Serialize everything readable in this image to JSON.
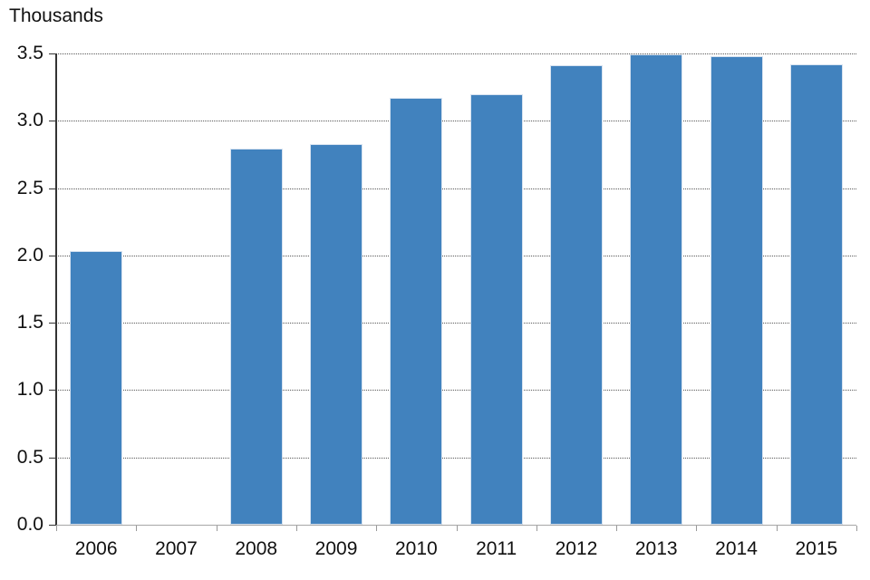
{
  "chart_data": {
    "type": "bar",
    "title": "",
    "ylabel": "Thousands",
    "ylabel_position": "top-left",
    "xlabel": "",
    "categories": [
      "2006",
      "2007",
      "2008",
      "2009",
      "2010",
      "2011",
      "2012",
      "2013",
      "2014",
      "2015"
    ],
    "values": [
      2.03,
      null,
      2.79,
      2.83,
      3.17,
      3.2,
      3.41,
      3.49,
      3.48,
      3.42
    ],
    "ylim": [
      0,
      3.5
    ],
    "ytick_step": 0.5,
    "ytick_labels": [
      "0.0",
      "0.5",
      "1.0",
      "1.5",
      "2.0",
      "2.5",
      "3.0",
      "3.5"
    ],
    "grid": "horizontal-dotted",
    "legend": "none",
    "colors": {
      "bar_fill": "#4182BE",
      "bar_border": "#D6E2F0",
      "gridline": "#595959",
      "y_axis": "#333333",
      "x_axis": "#A6A6A6",
      "text": "#111111",
      "background": "#FFFFFF"
    }
  }
}
